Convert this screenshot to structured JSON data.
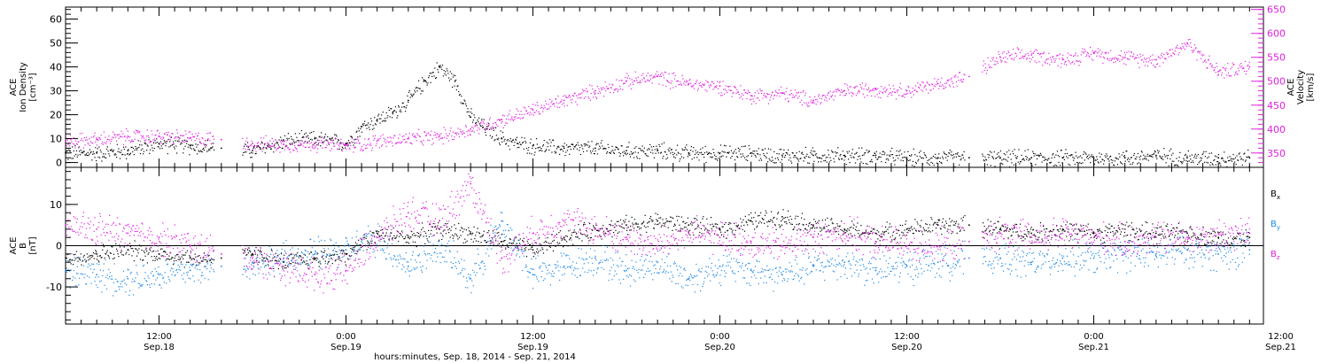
{
  "chart_data": [
    {
      "type": "scatter",
      "title": "",
      "y_left": {
        "label_lines": [
          "ACE",
          "Ion Density",
          "[cm⁻³]"
        ],
        "ylim": [
          -2,
          65
        ],
        "ticks": [
          0,
          10,
          20,
          30,
          40,
          50,
          60
        ],
        "tick_labels": [
          "0",
          "10",
          "20",
          "30",
          "40",
          "50",
          "60"
        ]
      },
      "y_right": {
        "label_lines": [
          "ACE",
          "Velocity",
          "[km/s]"
        ],
        "ylim": [
          320,
          655
        ],
        "ticks": [
          350,
          400,
          450,
          500,
          550,
          600,
          650
        ],
        "tick_labels": [
          "350",
          "400",
          "450",
          "500",
          "550",
          "600",
          "650"
        ],
        "color": "#e020e0"
      },
      "xlim_hours": [
        6,
        84
      ],
      "series": [
        {
          "axis": "left",
          "color": "#000000",
          "x": [
            6,
            8,
            10,
            12,
            14,
            16,
            18,
            20,
            22,
            24,
            25,
            26,
            27,
            28,
            29,
            30,
            31,
            32,
            33,
            34,
            35,
            36,
            38,
            40,
            42,
            44,
            46,
            48,
            50,
            52,
            54,
            56,
            58,
            60,
            62,
            64,
            66,
            68,
            70,
            72,
            74,
            76,
            78,
            80,
            82
          ],
          "y": [
            4,
            4,
            5,
            8,
            7,
            6,
            5,
            9,
            10,
            8,
            15,
            18,
            21,
            26,
            34,
            40,
            34,
            19,
            14,
            10,
            8,
            7,
            6,
            6,
            5,
            5,
            4,
            4,
            4,
            3,
            3,
            3,
            3,
            2,
            2,
            2,
            2,
            2,
            2,
            2,
            2,
            3,
            2,
            2,
            2
          ]
        },
        {
          "axis": "right",
          "color": "#e020e0",
          "x": [
            6,
            8,
            10,
            12,
            14,
            16,
            18,
            20,
            22,
            24,
            26,
            28,
            30,
            32,
            34,
            36,
            38,
            40,
            42,
            44,
            46,
            48,
            50,
            52,
            54,
            56,
            58,
            60,
            62,
            64,
            66,
            68,
            70,
            72,
            74,
            76,
            78,
            80,
            82
          ],
          "y": [
            375,
            378,
            385,
            385,
            382,
            378,
            370,
            368,
            370,
            365,
            375,
            380,
            385,
            400,
            420,
            440,
            460,
            480,
            500,
            510,
            495,
            490,
            470,
            475,
            460,
            480,
            485,
            480,
            495,
            510,
            550,
            555,
            545,
            560,
            550,
            545,
            580,
            520,
            530
          ]
        }
      ]
    },
    {
      "type": "scatter",
      "title": "",
      "y_left": {
        "label_lines": [
          "ACE",
          "B",
          "[nT]"
        ],
        "ylim": [
          -19,
          19
        ],
        "ticks": [
          -10,
          0,
          10
        ],
        "tick_labels": [
          "-10",
          "0",
          "10"
        ]
      },
      "xlim_hours": [
        6,
        84
      ],
      "legend_position": "right",
      "series": [
        {
          "name": "B",
          "subscript": "x",
          "color": "#000000",
          "x": [
            6,
            8,
            10,
            12,
            14,
            16,
            18,
            20,
            22,
            24,
            26,
            28,
            30,
            32,
            34,
            36,
            38,
            40,
            42,
            44,
            46,
            48,
            50,
            52,
            54,
            56,
            58,
            60,
            62,
            64,
            66,
            68,
            70,
            72,
            74,
            76,
            78,
            80,
            82
          ],
          "y": [
            -3,
            -2,
            -1,
            -2,
            -3,
            -3,
            -2,
            -4,
            -3,
            -2,
            3,
            2,
            4,
            3,
            1,
            -1,
            2,
            4,
            5,
            6,
            5,
            4,
            6,
            7,
            5,
            4,
            3,
            4,
            5,
            5,
            4,
            3,
            4,
            3,
            4,
            3,
            3,
            2,
            2
          ]
        },
        {
          "name": "B",
          "subscript": "y",
          "color": "#1e88e5",
          "x": [
            6,
            8,
            10,
            12,
            14,
            16,
            18,
            20,
            22,
            24,
            26,
            28,
            30,
            32,
            34,
            36,
            38,
            40,
            42,
            44,
            46,
            48,
            50,
            52,
            54,
            56,
            58,
            60,
            62,
            64,
            66,
            68,
            70,
            72,
            74,
            76,
            78,
            80,
            82
          ],
          "y": [
            -6,
            -7,
            -8,
            -7,
            -6,
            -5,
            -4,
            -3,
            -2,
            -1,
            2,
            -5,
            0,
            -8,
            6,
            -7,
            -5,
            -3,
            -6,
            -4,
            -8,
            -5,
            -6,
            -7,
            -5,
            -4,
            -6,
            -5,
            -4,
            -3,
            -3,
            -4,
            -3,
            -3,
            -2,
            -2,
            -1,
            -2,
            -1
          ]
        },
        {
          "name": "B",
          "subscript": "z",
          "color": "#e020e0",
          "x": [
            6,
            8,
            10,
            12,
            14,
            16,
            18,
            20,
            22,
            24,
            26,
            28,
            30,
            32,
            34,
            36,
            38,
            40,
            42,
            44,
            46,
            48,
            50,
            52,
            54,
            56,
            58,
            60,
            62,
            64,
            66,
            68,
            70,
            72,
            74,
            76,
            78,
            80,
            82
          ],
          "y": [
            5,
            4,
            3,
            2,
            0,
            -2,
            -3,
            -5,
            -7,
            -6,
            2,
            8,
            6,
            15,
            -3,
            3,
            6,
            4,
            2,
            0,
            3,
            2,
            1,
            0,
            2,
            3,
            1,
            0,
            0,
            1,
            3,
            2,
            3,
            2,
            1,
            2,
            2,
            3,
            3
          ]
        }
      ]
    }
  ],
  "x_axis": {
    "ticks": [
      {
        "hour": 12,
        "time": "12:00",
        "date": "Sep.18"
      },
      {
        "hour": 24,
        "time": "0:00",
        "date": "Sep.19"
      },
      {
        "hour": 36,
        "time": "12:00",
        "date": "Sep.19"
      },
      {
        "hour": 48,
        "time": "0:00",
        "date": "Sep.20"
      },
      {
        "hour": 60,
        "time": "12:00",
        "date": "Sep.20"
      },
      {
        "hour": 72,
        "time": "0:00",
        "date": "Sep.21"
      },
      {
        "hour": 84,
        "time": "12:00",
        "date": "Sep.21"
      }
    ],
    "label": "hours:minutes, Sep. 18, 2014 - Sep. 21, 2014"
  }
}
